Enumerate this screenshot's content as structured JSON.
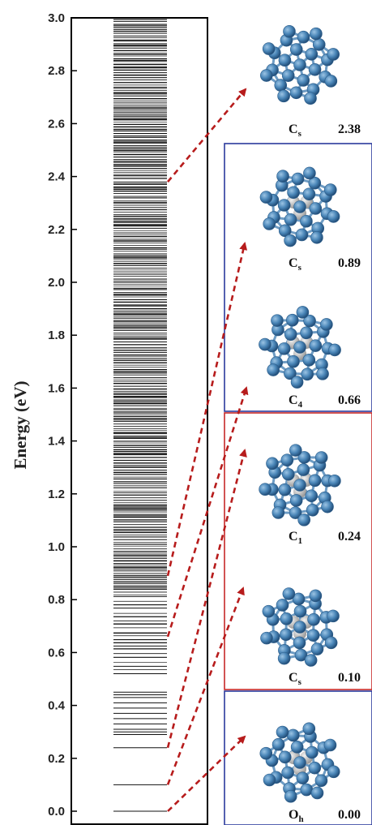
{
  "chart_data": {
    "type": "energy-spectrum",
    "ylabel": "Energy (eV)",
    "ylim": [
      0,
      3.0
    ],
    "y_ticks": [
      "0.0",
      "0.2",
      "0.4",
      "0.6",
      "0.8",
      "1.0",
      "1.2",
      "1.4",
      "1.6",
      "1.8",
      "2.0",
      "2.2",
      "2.4",
      "2.6",
      "2.8",
      "3.0"
    ],
    "discrete_levels": [
      0.0,
      0.1,
      0.24,
      0.29,
      0.3,
      0.31,
      0.33,
      0.35,
      0.37,
      0.39,
      0.41,
      0.43,
      0.44,
      0.45
    ],
    "continuum_start": 0.52,
    "continuum_end": 3.0,
    "isomers": [
      {
        "symmetry": "O",
        "sub": "h",
        "energy": "0.00",
        "level": 0.0,
        "group": "blue"
      },
      {
        "symmetry": "C",
        "sub": "s",
        "energy": "0.10",
        "level": 0.1,
        "group": "red"
      },
      {
        "symmetry": "C",
        "sub": "1",
        "energy": "0.24",
        "level": 0.24,
        "group": "red"
      },
      {
        "symmetry": "C",
        "sub": "4",
        "energy": "0.66",
        "level": 0.66,
        "group": "blue"
      },
      {
        "symmetry": "C",
        "sub": "s",
        "energy": "0.89",
        "level": 0.89,
        "group": "blue"
      },
      {
        "symmetry": "C",
        "sub": "s",
        "energy": "2.38",
        "level": 2.38,
        "group": "none"
      }
    ],
    "colors": {
      "arrow": "#b71c1c",
      "blue_box": "#2b3a9c",
      "red_box": "#c62828",
      "atom": "#4a86b8",
      "atom_inner": "#c8c8c8",
      "level_line": "#111111"
    }
  }
}
